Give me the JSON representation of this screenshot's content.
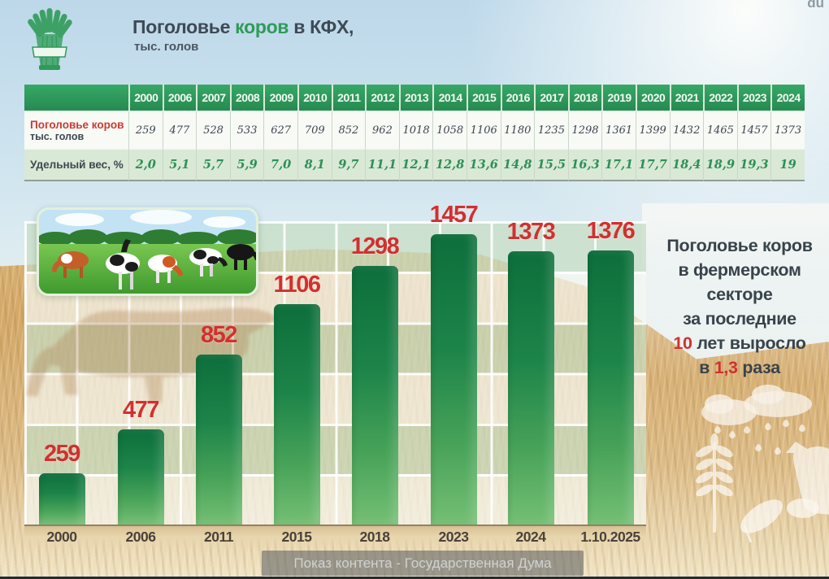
{
  "watermark": "du",
  "title": {
    "pre": "Поголовье ",
    "highlight": "коров",
    "post": " в КФХ,",
    "subtitle": "тыс. голов"
  },
  "table": {
    "years": [
      "2000",
      "2006",
      "2007",
      "2008",
      "2009",
      "2010",
      "2011",
      "2012",
      "2013",
      "2014",
      "2015",
      "2016",
      "2017",
      "2018",
      "2019",
      "2020",
      "2021",
      "2022",
      "2023",
      "2024"
    ],
    "row1": {
      "label_main": "Поголовье коров",
      "label_sub": "тыс. голов",
      "values": [
        "259",
        "477",
        "528",
        "533",
        "627",
        "709",
        "852",
        "962",
        "1018",
        "1058",
        "1106",
        "1180",
        "1235",
        "1298",
        "1361",
        "1399",
        "1432",
        "1465",
        "1457",
        "1373"
      ]
    },
    "row2": {
      "label": "Удельный вес, %",
      "values": [
        "2,0",
        "5,1",
        "5,7",
        "5,9",
        "7,0",
        "8,1",
        "9,7",
        "11,1",
        "12,1",
        "12,8",
        "13,6",
        "14,8",
        "15,5",
        "16,3",
        "17,1",
        "17,7",
        "18,4",
        "18,9",
        "19,3",
        "19"
      ]
    }
  },
  "chart_data": {
    "type": "bar",
    "title": "Поголовье коров в КФХ, тыс. голов",
    "categories": [
      "2000",
      "2006",
      "2011",
      "2015",
      "2018",
      "2023",
      "2024",
      "1.10.2025"
    ],
    "values": [
      259,
      477,
      852,
      1106,
      1298,
      1457,
      1373,
      1376
    ],
    "bar_labels": [
      "259",
      "477",
      "852",
      "1106",
      "1298",
      "1457",
      "1373",
      "1376"
    ],
    "xlabel": "",
    "ylabel": "тыс. голов",
    "ylim": [
      0,
      1520
    ],
    "grid": "on",
    "legend": "none",
    "bar_color": "#1d8449",
    "label_color": "#d42f2f"
  },
  "annotation": {
    "line1": "Поголовье коров",
    "line2": "в фермерском",
    "line3": "секторе",
    "line4": "за последние",
    "line5_red": "10",
    "line5_rest": " лет выросло",
    "line6_pre": "в ",
    "line6_red": "1,3",
    "line6_rest": " раза",
    "accent_color": "#d42f2f"
  },
  "caption": {
    "text": "Показ контента - Государственная Дума"
  },
  "icons": {
    "logo": "wheat-sheaf-logo",
    "cluster": [
      "cloud-rain-icon",
      "wheat-ear-icon",
      "leaf-icon",
      "cow-head-icon"
    ],
    "photo": "cows-pasture-photo"
  },
  "colors": {
    "header_green": "#2f9b58",
    "table_row2_bg": "#d9e9d6",
    "value_green": "#2e8f57",
    "red": "#d42f2f",
    "bar_top": "#0d6e3b",
    "bar_bottom": "#74bf74",
    "title_dark": "#3e4a54"
  }
}
